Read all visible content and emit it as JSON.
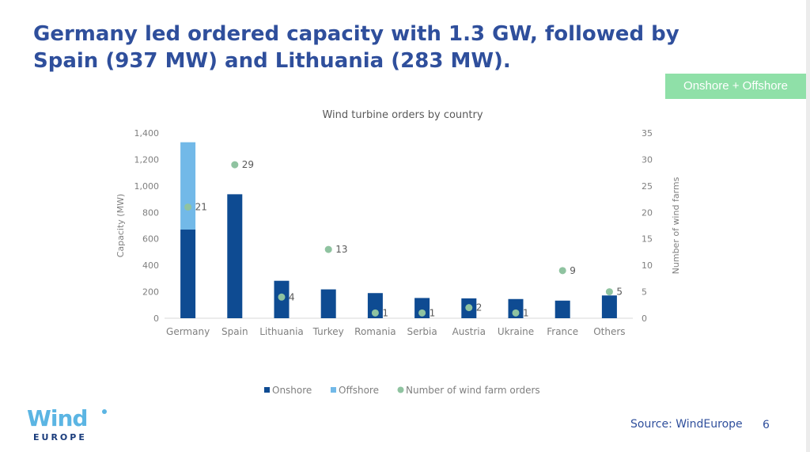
{
  "slide": {
    "headline": "Germany led ordered capacity with 1.3 GW, followed by Spain (937 MW) and Lithuania (283 MW).",
    "tag": "Onshore + Offshore",
    "source": "Source: WindEurope",
    "page_number": "6",
    "logo": {
      "main": "Wind",
      "sub": "EUROPE"
    },
    "colors": {
      "headline": "#2f4f9c",
      "tag_bg": "#8fe0a8",
      "logo": "#5bb5e3",
      "logo_sub": "#1a3c7c"
    }
  },
  "chart_data": {
    "type": "bar",
    "title": "Wind turbine orders by country",
    "categories": [
      "Germany",
      "Spain",
      "Lithuania",
      "Turkey",
      "Romania",
      "Serbia",
      "Austria",
      "Ukraine",
      "France",
      "Others"
    ],
    "series": [
      {
        "name": "Onshore",
        "type": "bar",
        "stack": "capacity",
        "axis": "left",
        "color": "#0e4b92",
        "values": [
          670,
          937,
          283,
          218,
          190,
          153,
          150,
          145,
          133,
          172
        ]
      },
      {
        "name": "Offshore",
        "type": "bar",
        "stack": "capacity",
        "axis": "left",
        "color": "#72b9e8",
        "values": [
          660,
          0,
          0,
          0,
          0,
          0,
          0,
          0,
          0,
          0
        ]
      },
      {
        "name": "Number of wind farm orders",
        "type": "scatter",
        "axis": "right",
        "color": "#8fc3a0",
        "values": [
          21,
          29,
          4,
          13,
          1,
          1,
          2,
          1,
          9,
          5
        ]
      }
    ],
    "ylabel": "Capacity (MW)",
    "y2label": "Number of wind farms",
    "ylim": [
      0,
      1400
    ],
    "yticks": [
      0,
      200,
      400,
      600,
      800,
      1000,
      1200,
      1400
    ],
    "ytick_labels": [
      "0",
      "200",
      "400",
      "600",
      "800",
      "1,000",
      "1,200",
      "1,400"
    ],
    "y2lim": [
      0,
      35
    ],
    "y2ticks": [
      0,
      5,
      10,
      15,
      20,
      25,
      30,
      35
    ],
    "grid": false,
    "legend": "bottom"
  }
}
